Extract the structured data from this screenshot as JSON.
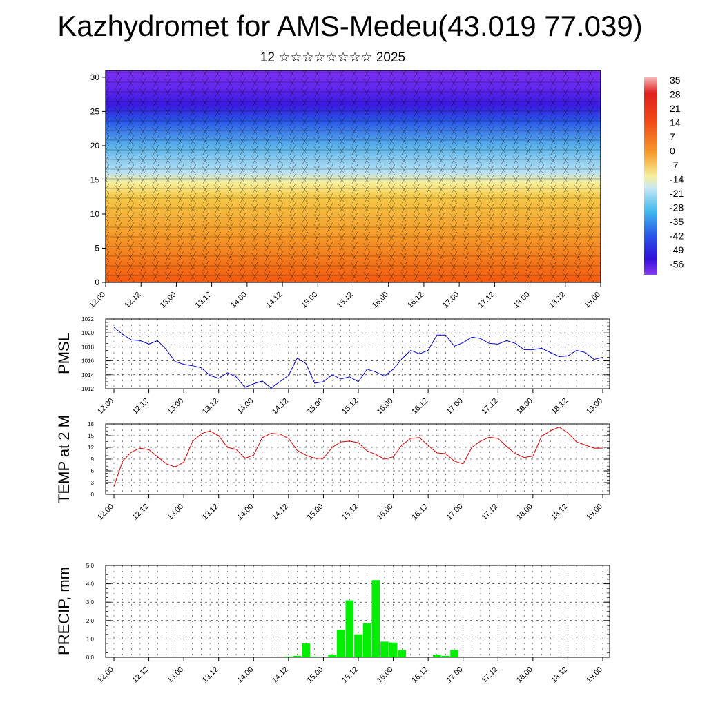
{
  "title": "Kazhydromet for AMS-Medeu(43.019 77.039)",
  "subtitle": "12 ☆☆☆☆☆☆☆☆ 2025",
  "x_tick_labels": [
    "12.00",
    "12.12",
    "13.00",
    "13.12",
    "14.00",
    "14.12",
    "15.00",
    "15.12",
    "16.00",
    "16.12",
    "17.00",
    "17.12",
    "18.00",
    "18.12",
    "19.00"
  ],
  "chart_data": [
    {
      "type": "heatmap",
      "name": "vertical-section",
      "y_ticks": [
        0,
        5,
        10,
        15,
        20,
        25,
        30
      ],
      "ylim": [
        0,
        31
      ],
      "colorbar_labels": [
        "35",
        "28",
        "21",
        "14",
        "7",
        "0",
        "-7",
        "-14",
        "-21",
        "-28",
        "-35",
        "-42",
        "-49",
        "-56"
      ],
      "colors": {
        "warm": "#f25a10",
        "mid": "#f5c040",
        "pale": "#f6ef9a",
        "cool": "#78c0ea",
        "cold": "#2a58e8",
        "deep": "#3a18e0",
        "top": "#7a30f0"
      }
    },
    {
      "type": "line",
      "ylabel": "PMSL",
      "ylim": [
        1012,
        1022
      ],
      "y_ticks": [
        1012,
        1014,
        1016,
        1018,
        1020,
        1022
      ],
      "color": "#0000cc",
      "x_step_hours": 3,
      "values": [
        1020.8,
        1019.8,
        1019.0,
        1018.9,
        1018.4,
        1018.9,
        1017.6,
        1015.9,
        1015.5,
        1015.3,
        1015.0,
        1013.9,
        1013.5,
        1014.3,
        1013.7,
        1012.2,
        1012.7,
        1013.1,
        1012.1,
        1013.0,
        1013.9,
        1016.4,
        1015.6,
        1012.8,
        1013.0,
        1014.0,
        1013.4,
        1013.7,
        1013.0,
        1014.8,
        1014.4,
        1013.8,
        1014.8,
        1016.3,
        1017.5,
        1017.0,
        1017.5,
        1019.7,
        1019.7,
        1018.1,
        1018.6,
        1019.4,
        1019.2,
        1018.5,
        1018.4,
        1018.9,
        1018.5,
        1017.6,
        1017.6,
        1017.8,
        1017.2,
        1016.6,
        1016.7,
        1017.5,
        1017.2,
        1016.2,
        1016.5
      ]
    },
    {
      "type": "line",
      "ylabel": "TEMP at 2 M",
      "ylim": [
        0,
        18
      ],
      "y_ticks": [
        0,
        3,
        6,
        9,
        12,
        15,
        18
      ],
      "color": "#dd0000",
      "x_step_hours": 3,
      "values": [
        2.0,
        8.5,
        10.8,
        11.8,
        11.4,
        9.6,
        7.8,
        7.0,
        8.2,
        13.5,
        15.5,
        16.2,
        15.0,
        12.0,
        11.5,
        9.2,
        10.0,
        14.5,
        15.6,
        15.4,
        14.3,
        11.2,
        10.0,
        9.2,
        9.2,
        12.0,
        13.4,
        13.6,
        13.2,
        11.1,
        10.2,
        9.0,
        9.6,
        12.6,
        14.3,
        14.5,
        12.5,
        10.6,
        10.4,
        8.5,
        7.8,
        12.0,
        13.6,
        14.6,
        14.3,
        12.2,
        10.4,
        9.4,
        9.8,
        14.9,
        16.2,
        17.2,
        15.7,
        13.4,
        12.6,
        11.8,
        11.8
      ]
    },
    {
      "type": "bar",
      "ylabel": "PRECIP, mm",
      "ylim": [
        0,
        5
      ],
      "y_ticks": [
        "0.0",
        "1.0",
        "2.0",
        "3.0",
        "4.0",
        "5.0"
      ],
      "color": "#00ee00",
      "x_step_hours": 3,
      "values": [
        0,
        0,
        0,
        0,
        0,
        0,
        0,
        0,
        0,
        0,
        0,
        0,
        0,
        0,
        0,
        0,
        0,
        0,
        0,
        0,
        0.03,
        0.08,
        0.75,
        0.02,
        0,
        0.15,
        1.5,
        3.1,
        1.25,
        1.85,
        4.2,
        0.85,
        0.8,
        0.4,
        0,
        0,
        0,
        0.15,
        0.08,
        0.4,
        0,
        0,
        0,
        0,
        0,
        0,
        0,
        0,
        0,
        0,
        0,
        0,
        0,
        0,
        0,
        0,
        0
      ]
    }
  ]
}
